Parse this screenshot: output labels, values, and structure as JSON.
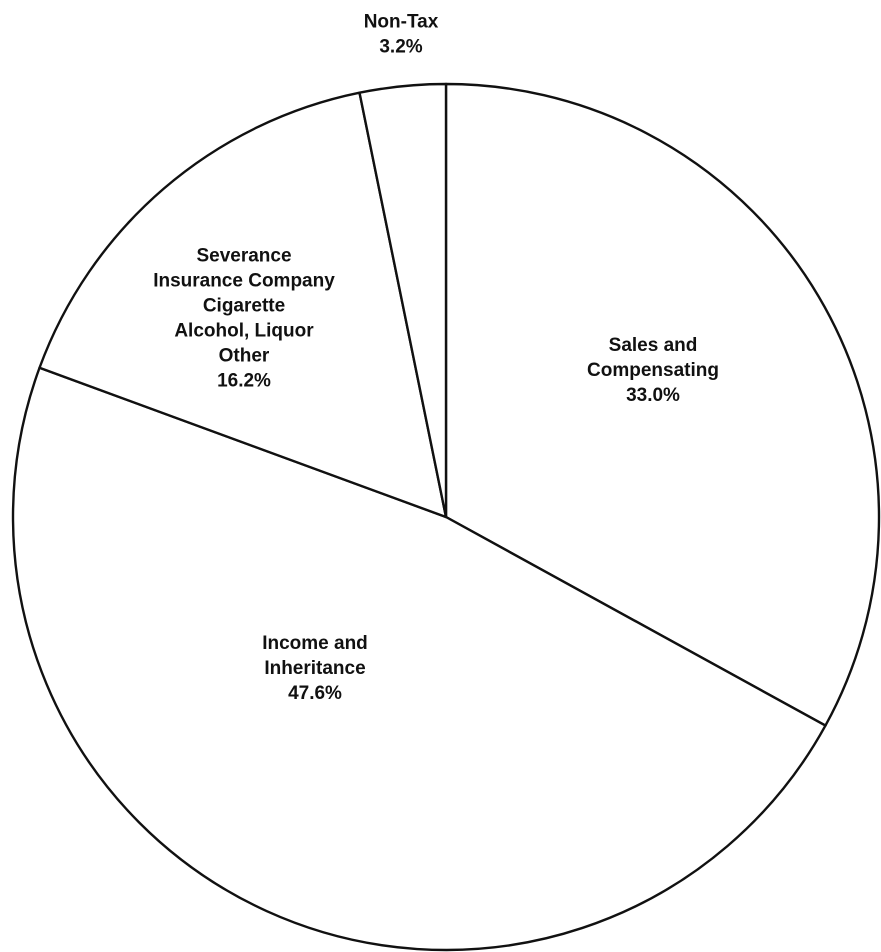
{
  "chart_data": {
    "type": "pie",
    "start_angle": "12 o'clock",
    "direction": "clockwise",
    "slices": [
      {
        "label_lines": [
          "Sales and",
          "Compensating"
        ],
        "value": 33.0,
        "value_text": "33.0%"
      },
      {
        "label_lines": [
          "Income and",
          "Inheritance"
        ],
        "value": 47.6,
        "value_text": "47.6%"
      },
      {
        "label_lines": [
          "Severance",
          "Insurance Company",
          "Cigarette",
          "Alcohol, Liquor",
          "Other"
        ],
        "value": 16.2,
        "value_text": "16.2%"
      },
      {
        "label_lines": [
          "Non-Tax"
        ],
        "value": 3.2,
        "value_text": "3.2%"
      }
    ]
  }
}
